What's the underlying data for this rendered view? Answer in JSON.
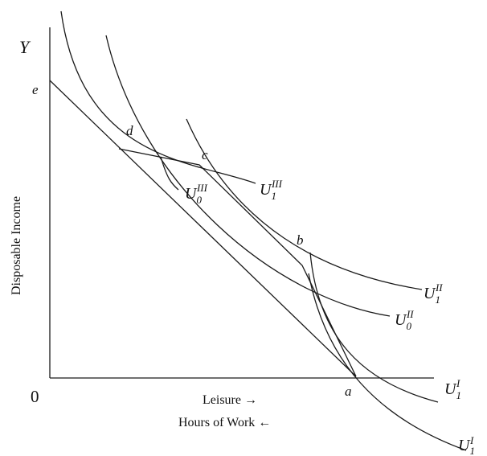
{
  "axes": {
    "y_symbol": "Y",
    "origin": "0",
    "y_label": "Disposable Income",
    "x_label_1": "Leisure →",
    "x_label_2": "Hours of Work ←"
  },
  "points": {
    "a": "a",
    "b": "b",
    "c": "c",
    "d": "d",
    "e": "e"
  },
  "curves": {
    "U": "U",
    "u1_sub": "1",
    "u0_sub": "1",
    "u1_sup": "I",
    "u0_sup": "I",
    "u1ii_sub": "1",
    "u1ii_sup": "II",
    "u0ii_sub": "0",
    "u0ii_sup": "II",
    "u1iii_sub": "1",
    "u1iii_sup": "III",
    "u0iii_sub": "0",
    "u0iii_sup": "III"
  },
  "colors": {
    "ink": "#1a1a1a",
    "background": "#ffffff"
  }
}
